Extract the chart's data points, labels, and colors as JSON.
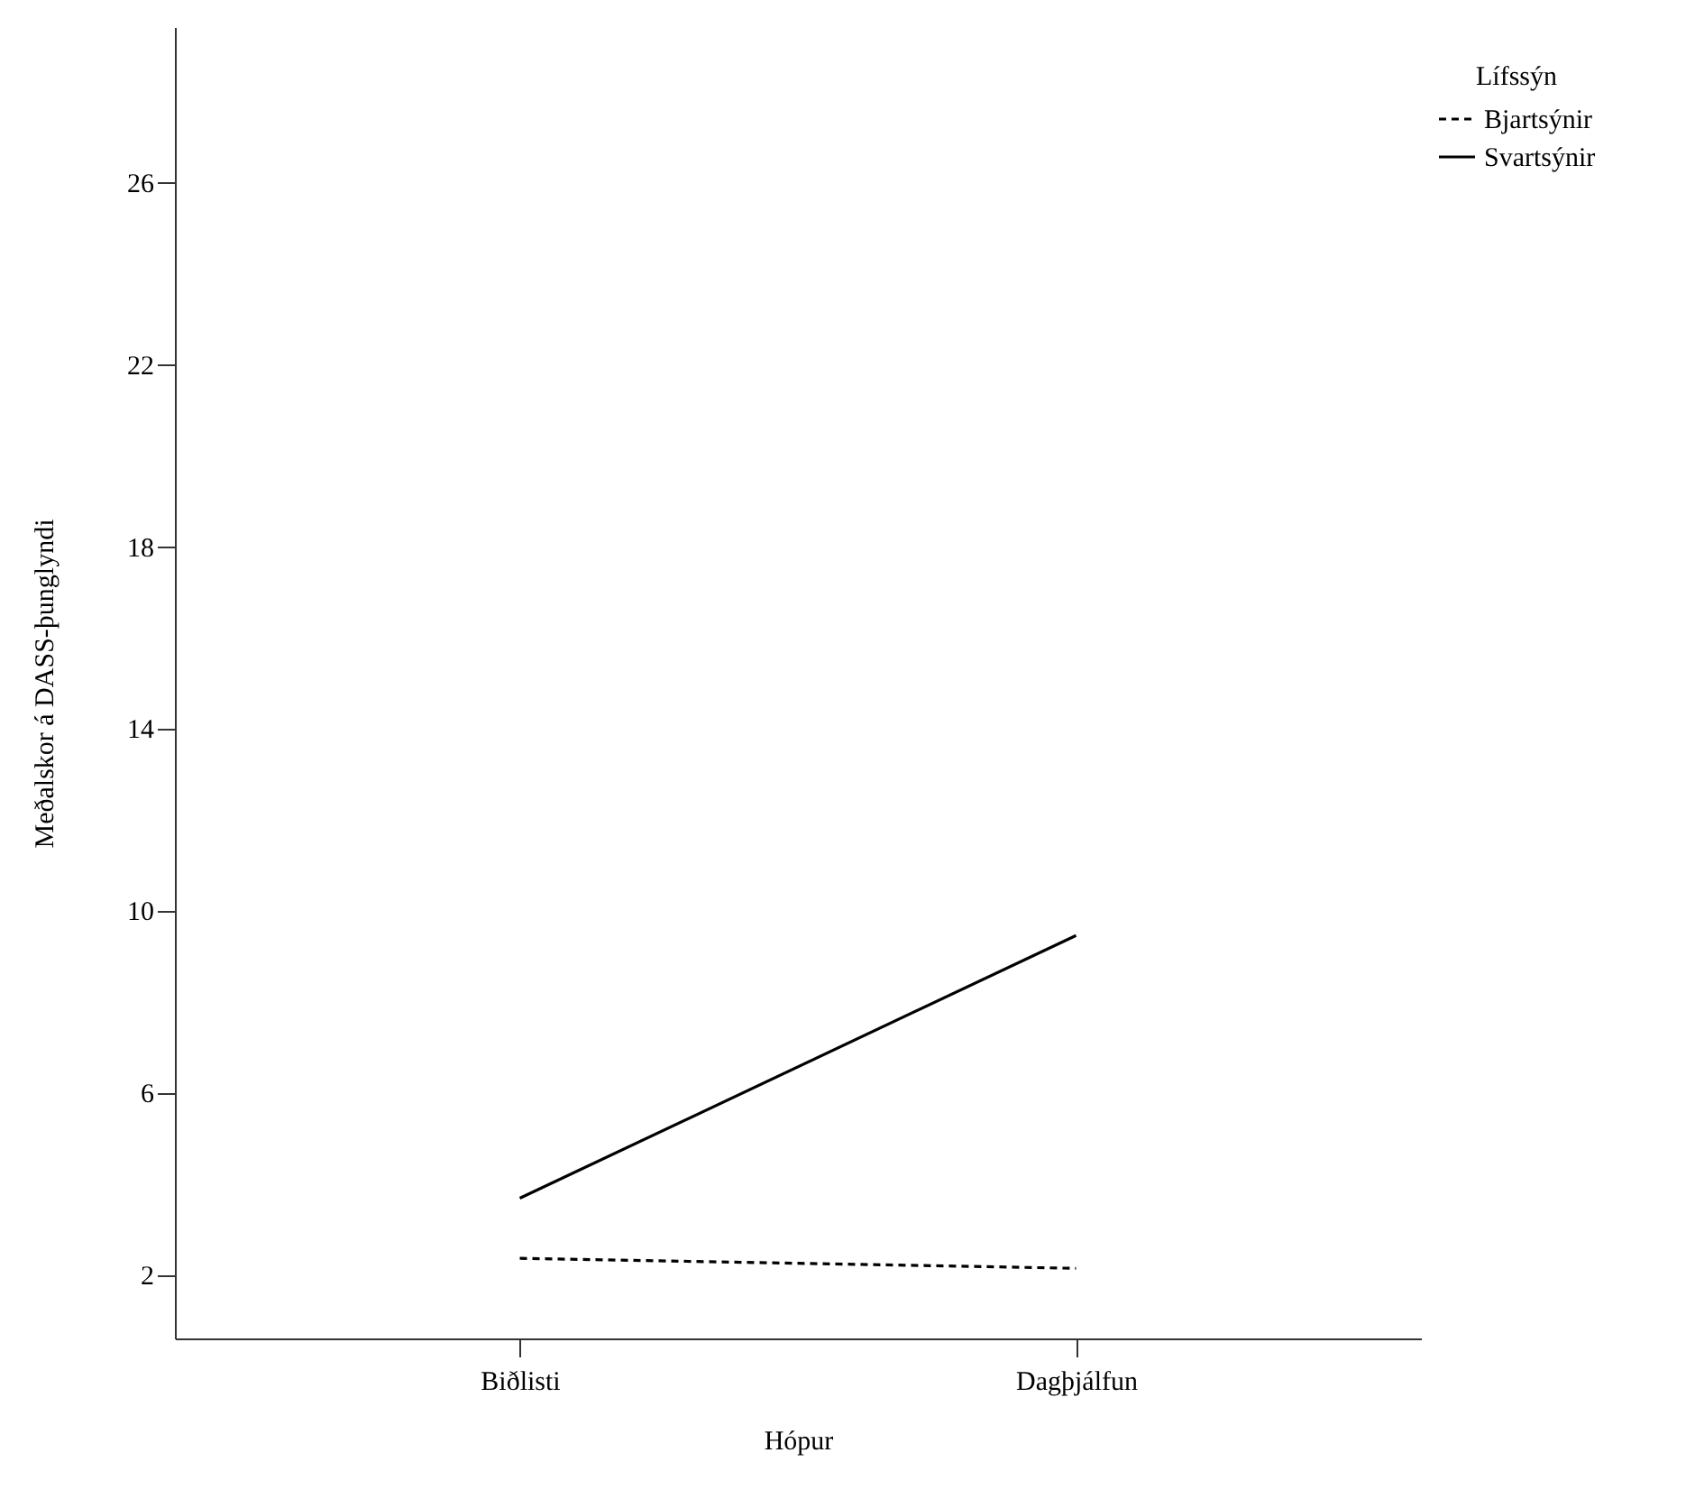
{
  "chart_data": {
    "type": "line",
    "xlabel": "Hópur",
    "ylabel": "Meðalskor á DASS-þunglyndi",
    "legend_title": "Lífssýn",
    "categories": [
      "Biðlisti",
      "Dagþjálfun"
    ],
    "series": [
      {
        "name": "Bjartsýnir",
        "color": "#000000",
        "line_style": "dashed",
        "values": [
          2.36,
          2.14
        ]
      },
      {
        "name": "Svartsýnir",
        "color": "#000000",
        "line_style": "solid",
        "values": [
          3.68,
          9.45
        ]
      }
    ],
    "ylim": [
      0.6,
      29.4
    ],
    "yticks": [
      2,
      6,
      10,
      14,
      18,
      22,
      26
    ],
    "grid": false,
    "legend": "top right",
    "marker": "none"
  }
}
